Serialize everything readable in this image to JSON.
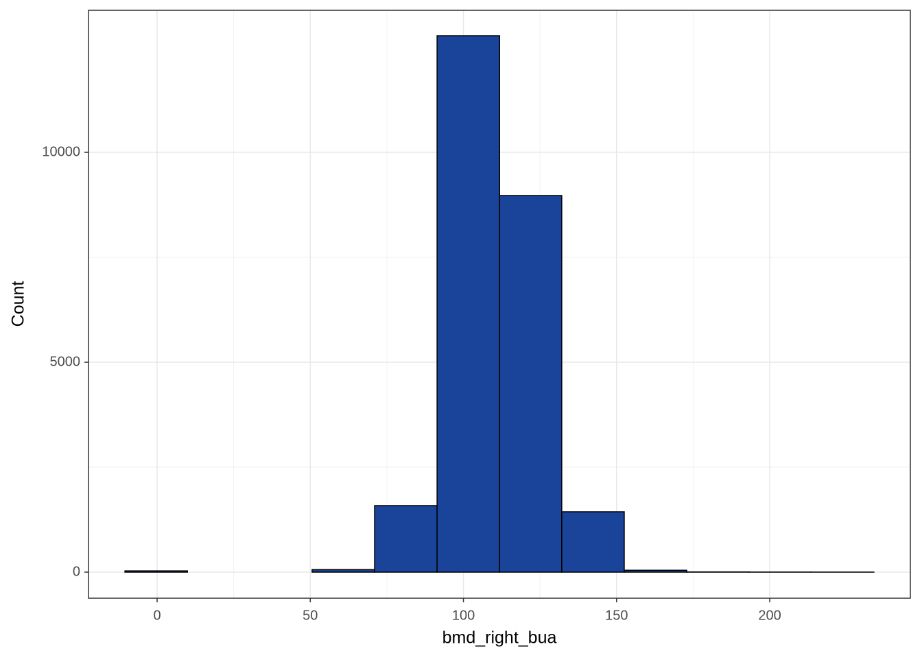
{
  "chart_data": {
    "type": "histogram",
    "x_label": "bmd_right_bua",
    "y_label": "Count",
    "bins": [
      -10.5,
      9.9,
      30.2,
      50.6,
      71.0,
      91.4,
      111.8,
      132.1,
      152.5,
      172.9,
      193.3,
      213.6,
      234.0
    ],
    "values": [
      30,
      0,
      0,
      60,
      1585,
      12778,
      8971,
      1438,
      45,
      5,
      2,
      1
    ],
    "color": "#1a4499",
    "edge_color": "#000000",
    "xlim": [
      -22.4,
      245.9
    ],
    "xticks": [
      0,
      50,
      100,
      150,
      200
    ],
    "ylim": [
      -621,
      13383
    ],
    "yticks": [
      0,
      5000,
      10000
    ],
    "grid": true
  }
}
